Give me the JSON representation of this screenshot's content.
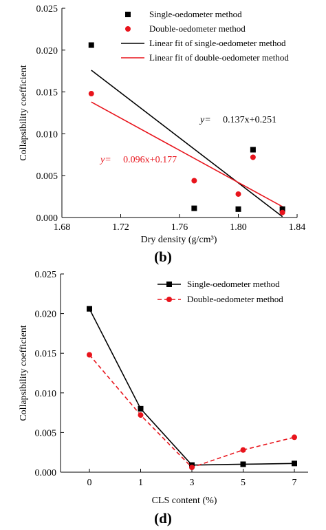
{
  "chart_data": [
    {
      "type": "scatter",
      "panel_label": "(b)",
      "xlabel": "Dry density (g/cm³)",
      "ylabel": "Collapsibility coefficient",
      "xlim": [
        1.68,
        1.84
      ],
      "ylim": [
        0,
        0.025
      ],
      "xticks": [
        "1.68",
        "1.72",
        "1.76",
        "1.80",
        "1.84"
      ],
      "yticks": [
        "0.000",
        "0.005",
        "0.010",
        "0.015",
        "0.020",
        "0.025"
      ],
      "legend_position": "top-right",
      "series": [
        {
          "name": "Single-oedometer method",
          "marker": "square",
          "color": "#000000",
          "points": [
            [
              1.7,
              0.0206
            ],
            [
              1.77,
              0.0011
            ],
            [
              1.8,
              0.001
            ],
            [
              1.81,
              0.0081
            ],
            [
              1.83,
              0.001
            ]
          ]
        },
        {
          "name": "Double-oedometer method",
          "marker": "circle",
          "color": "#e8141c",
          "points": [
            [
              1.7,
              0.0148
            ],
            [
              1.77,
              0.0044
            ],
            [
              1.8,
              0.0028
            ],
            [
              1.81,
              0.0072
            ],
            [
              1.83,
              0.0006
            ]
          ]
        }
      ],
      "fits": [
        {
          "name": "Linear fit of single-oedometer method",
          "color": "#000000",
          "x": [
            1.7,
            1.83
          ],
          "y": [
            0.0176,
            0.0001
          ]
        },
        {
          "name": "Linear fit of double-oedometer method",
          "color": "#e8141c",
          "x": [
            1.7,
            1.83
          ],
          "y": [
            0.0138,
            0.0013
          ]
        }
      ],
      "annotations": [
        {
          "label": "y=",
          "text": "0.137x+0.251",
          "color": "#000000"
        },
        {
          "label": "y=",
          "text": "0.096x+0.177",
          "color": "#e8141c"
        }
      ]
    },
    {
      "type": "line",
      "panel_label": "(d)",
      "xlabel": "CLS content (%)",
      "ylabel": "Collapsibility coefficient",
      "categories": [
        "0",
        "1",
        "3",
        "5",
        "7"
      ],
      "ylim": [
        0,
        0.025
      ],
      "yticks": [
        "0.000",
        "0.005",
        "0.010",
        "0.015",
        "0.020",
        "0.025"
      ],
      "legend_position": "top-right",
      "series": [
        {
          "name": "Single-oedometer method",
          "marker": "square",
          "color": "#000000",
          "dash": false,
          "values": [
            0.0206,
            0.008,
            0.0009,
            0.001,
            0.0011
          ]
        },
        {
          "name": "Double-oedometer method",
          "marker": "circle",
          "color": "#e8141c",
          "dash": true,
          "values": [
            0.0148,
            0.0072,
            0.0006,
            0.0028,
            0.0044
          ]
        }
      ]
    }
  ]
}
